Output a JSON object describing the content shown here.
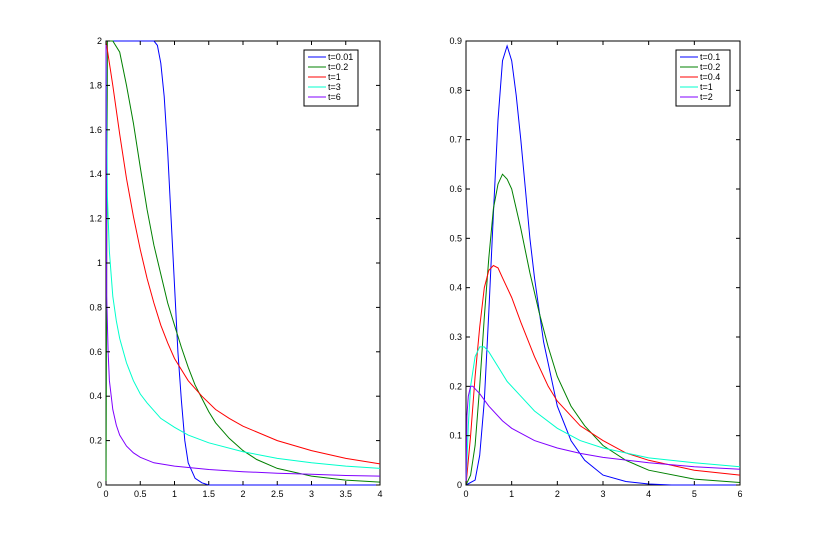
{
  "chart_data": [
    {
      "type": "line",
      "title": "",
      "xlabel": "",
      "ylabel": "",
      "xlim": [
        0,
        4
      ],
      "ylim": [
        0,
        2
      ],
      "xticks": [
        0,
        0.5,
        1,
        1.5,
        2,
        2.5,
        3,
        3.5,
        4
      ],
      "xtick_labels": [
        "0",
        "0.5",
        "1",
        "1.5",
        "2",
        "2.5",
        "3",
        "3.5",
        "4"
      ],
      "yticks": [
        0,
        0.2,
        0.4,
        0.6,
        0.8,
        1,
        1.2,
        1.4,
        1.6,
        1.8,
        2
      ],
      "ytick_labels": [
        "0",
        "0.2",
        "0.4",
        "0.6",
        "0.8",
        "1",
        "1.2",
        "1.4",
        "1.6",
        "1.8",
        "2"
      ],
      "grid": false,
      "legend_position": "top-right",
      "series": [
        {
          "name": "t=0.01",
          "color": "#0000ff",
          "x": [
            0,
            0.3,
            0.6,
            0.7,
            0.75,
            0.8,
            0.85,
            0.9,
            0.95,
            1.0,
            1.05,
            1.1,
            1.15,
            1.2,
            1.3,
            1.4,
            1.5,
            1.6,
            1.8,
            2,
            2.5,
            3,
            3.5,
            4
          ],
          "y": [
            2,
            2,
            2,
            2,
            1.98,
            1.9,
            1.75,
            1.5,
            1.2,
            0.9,
            0.6,
            0.38,
            0.2,
            0.1,
            0.03,
            0.01,
            0,
            0,
            0,
            0,
            0,
            0,
            0,
            0
          ]
        },
        {
          "name": "t=0.2",
          "color": "#008000",
          "x": [
            0,
            0.02,
            0.1,
            0.2,
            0.3,
            0.4,
            0.5,
            0.6,
            0.7,
            0.8,
            0.9,
            1.0,
            1.1,
            1.2,
            1.3,
            1.4,
            1.5,
            1.6,
            1.8,
            2.0,
            2.2,
            2.5,
            3.0,
            3.5,
            4.0
          ],
          "y": [
            0,
            2,
            2,
            1.95,
            1.8,
            1.63,
            1.43,
            1.24,
            1.08,
            0.95,
            0.82,
            0.72,
            0.62,
            0.53,
            0.45,
            0.39,
            0.33,
            0.28,
            0.21,
            0.155,
            0.115,
            0.075,
            0.04,
            0.022,
            0.013
          ]
        },
        {
          "name": "t=1",
          "color": "#ff0000",
          "x": [
            0,
            0.05,
            0.1,
            0.2,
            0.3,
            0.4,
            0.5,
            0.6,
            0.7,
            0.8,
            0.9,
            1.0,
            1.2,
            1.4,
            1.6,
            1.8,
            2.0,
            2.5,
            3.0,
            3.5,
            4.0
          ],
          "y": [
            2,
            1.9,
            1.8,
            1.58,
            1.38,
            1.21,
            1.06,
            0.93,
            0.82,
            0.72,
            0.64,
            0.57,
            0.47,
            0.4,
            0.34,
            0.3,
            0.265,
            0.2,
            0.155,
            0.12,
            0.095
          ]
        },
        {
          "name": "t=3",
          "color": "#00ffcc",
          "x": [
            0,
            0.02,
            0.05,
            0.1,
            0.15,
            0.2,
            0.3,
            0.4,
            0.5,
            0.6,
            0.8,
            1.0,
            1.2,
            1.5,
            2.0,
            2.5,
            3.0,
            3.5,
            4.0
          ],
          "y": [
            2,
            1.3,
            1.05,
            0.85,
            0.74,
            0.66,
            0.55,
            0.47,
            0.41,
            0.37,
            0.3,
            0.26,
            0.225,
            0.19,
            0.15,
            0.12,
            0.1,
            0.085,
            0.075
          ]
        },
        {
          "name": "t=6",
          "color": "#8000ff",
          "x": [
            0,
            0.01,
            0.03,
            0.05,
            0.1,
            0.15,
            0.2,
            0.3,
            0.4,
            0.5,
            0.7,
            1.0,
            1.5,
            2.0,
            2.5,
            3.0,
            3.5,
            4.0
          ],
          "y": [
            2,
            0.85,
            0.6,
            0.47,
            0.34,
            0.27,
            0.225,
            0.175,
            0.145,
            0.125,
            0.1,
            0.085,
            0.07,
            0.06,
            0.053,
            0.048,
            0.043,
            0.04
          ]
        }
      ]
    },
    {
      "type": "line",
      "title": "",
      "xlabel": "",
      "ylabel": "",
      "xlim": [
        0,
        6
      ],
      "ylim": [
        0,
        0.9
      ],
      "xticks": [
        0,
        1,
        2,
        3,
        4,
        5,
        6
      ],
      "xtick_labels": [
        "0",
        "1",
        "2",
        "3",
        "4",
        "5",
        "6"
      ],
      "yticks": [
        0,
        0.1,
        0.2,
        0.3,
        0.4,
        0.5,
        0.6,
        0.7,
        0.8,
        0.9
      ],
      "ytick_labels": [
        "0",
        "0.1",
        "0.2",
        "0.3",
        "0.4",
        "0.5",
        "0.6",
        "0.7",
        "0.8",
        "0.9"
      ],
      "grid": false,
      "legend_position": "top-right",
      "series": [
        {
          "name": "t=0.1",
          "color": "#0000ff",
          "x": [
            0,
            0.2,
            0.3,
            0.4,
            0.5,
            0.6,
            0.7,
            0.8,
            0.9,
            1.0,
            1.1,
            1.2,
            1.3,
            1.4,
            1.5,
            1.7,
            2.0,
            2.3,
            2.6,
            3.0,
            3.5,
            4.0,
            4.5,
            5,
            6
          ],
          "y": [
            0,
            0.01,
            0.06,
            0.17,
            0.35,
            0.55,
            0.74,
            0.86,
            0.89,
            0.86,
            0.79,
            0.7,
            0.6,
            0.5,
            0.42,
            0.29,
            0.16,
            0.09,
            0.05,
            0.02,
            0.007,
            0.002,
            0,
            0,
            0
          ]
        },
        {
          "name": "t=0.2",
          "color": "#008000",
          "x": [
            0,
            0.1,
            0.2,
            0.3,
            0.4,
            0.5,
            0.6,
            0.7,
            0.8,
            0.9,
            1.0,
            1.2,
            1.4,
            1.6,
            1.8,
            2.0,
            2.3,
            2.6,
            3.0,
            3.5,
            4.0,
            5.0,
            6.0
          ],
          "y": [
            0,
            0.02,
            0.08,
            0.2,
            0.34,
            0.46,
            0.56,
            0.61,
            0.63,
            0.62,
            0.6,
            0.52,
            0.43,
            0.35,
            0.28,
            0.22,
            0.16,
            0.12,
            0.08,
            0.05,
            0.03,
            0.012,
            0.005
          ]
        },
        {
          "name": "t=0.4",
          "color": "#ff0000",
          "x": [
            0,
            0.1,
            0.2,
            0.3,
            0.4,
            0.5,
            0.6,
            0.7,
            0.8,
            1.0,
            1.2,
            1.5,
            1.8,
            2.0,
            2.5,
            3.0,
            3.5,
            4.0,
            5.0,
            6.0
          ],
          "y": [
            0,
            0.1,
            0.22,
            0.32,
            0.4,
            0.435,
            0.445,
            0.44,
            0.42,
            0.38,
            0.33,
            0.26,
            0.2,
            0.17,
            0.12,
            0.09,
            0.065,
            0.05,
            0.03,
            0.02
          ]
        },
        {
          "name": "t=1",
          "color": "#00ffcc",
          "x": [
            0,
            0.05,
            0.1,
            0.2,
            0.3,
            0.4,
            0.5,
            0.7,
            0.9,
            1.2,
            1.5,
            2.0,
            2.5,
            3.0,
            4.0,
            5.0,
            6.0
          ],
          "y": [
            0,
            0.12,
            0.2,
            0.26,
            0.28,
            0.28,
            0.27,
            0.24,
            0.21,
            0.18,
            0.15,
            0.115,
            0.09,
            0.075,
            0.055,
            0.045,
            0.037
          ]
        },
        {
          "name": "t=2",
          "color": "#8000ff",
          "x": [
            0,
            0.02,
            0.05,
            0.1,
            0.15,
            0.2,
            0.3,
            0.5,
            0.8,
            1.0,
            1.5,
            2.0,
            2.5,
            3.0,
            4.0,
            5.0,
            6.0
          ],
          "y": [
            0,
            0.14,
            0.18,
            0.2,
            0.2,
            0.195,
            0.185,
            0.16,
            0.13,
            0.115,
            0.09,
            0.075,
            0.064,
            0.056,
            0.045,
            0.037,
            0.032
          ]
        }
      ]
    }
  ]
}
